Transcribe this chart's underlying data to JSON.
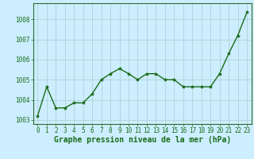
{
  "x": [
    0,
    1,
    2,
    3,
    4,
    5,
    6,
    7,
    8,
    9,
    10,
    11,
    12,
    13,
    14,
    15,
    16,
    17,
    18,
    19,
    20,
    21,
    22,
    23
  ],
  "y": [
    1003.2,
    1004.65,
    1003.6,
    1003.6,
    1003.85,
    1003.85,
    1004.3,
    1005.0,
    1005.3,
    1005.55,
    1005.3,
    1005.0,
    1005.3,
    1005.3,
    1005.0,
    1005.0,
    1004.65,
    1004.65,
    1004.65,
    1004.65,
    1005.3,
    1006.3,
    1007.2,
    1008.35
  ],
  "line_color": "#1a6b1a",
  "marker": "*",
  "marker_size": 3.0,
  "background_color": "#cceeff",
  "grid_color": "#aacccc",
  "xlabel": "Graphe pression niveau de la mer (hPa)",
  "ylim": [
    1002.8,
    1008.8
  ],
  "yticks": [
    1003,
    1004,
    1005,
    1006,
    1007,
    1008
  ],
  "xticks": [
    0,
    1,
    2,
    3,
    4,
    5,
    6,
    7,
    8,
    9,
    10,
    11,
    12,
    13,
    14,
    15,
    16,
    17,
    18,
    19,
    20,
    21,
    22,
    23
  ],
  "tick_label_fontsize": 5.5,
  "xlabel_fontsize": 7.0,
  "line_width": 1.0
}
